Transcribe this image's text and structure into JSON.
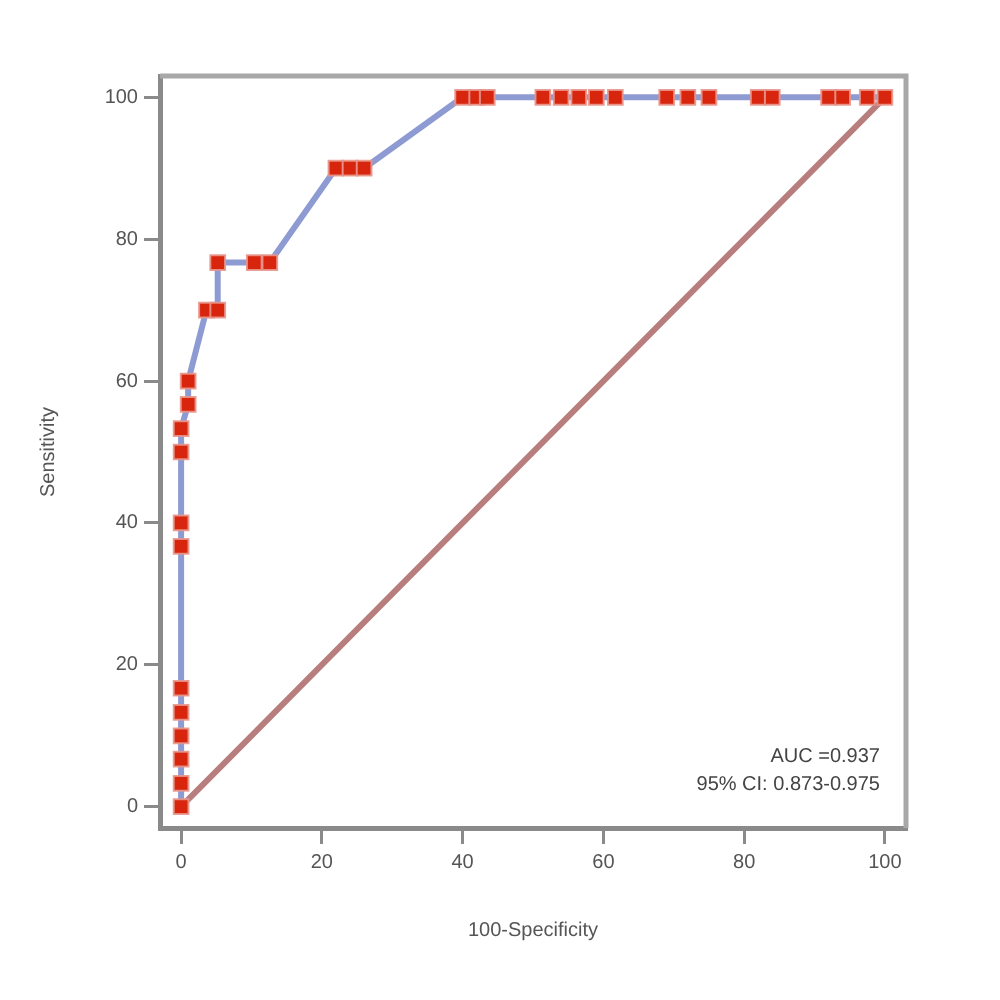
{
  "chart_data": {
    "type": "line",
    "xlabel": "100-Specificity",
    "ylabel": "Sensitivity",
    "xlim": [
      -3,
      103
    ],
    "ylim": [
      -3,
      103
    ],
    "xticks": [
      0,
      20,
      40,
      60,
      80,
      100
    ],
    "yticks": [
      0,
      20,
      40,
      60,
      80,
      100
    ],
    "grid": false,
    "legend": false,
    "marker": "square",
    "series": [
      {
        "type": "line",
        "color": "#b87d7d",
        "marker": "none",
        "x": [
          0,
          100
        ],
        "values": [
          0,
          100
        ]
      },
      {
        "type": "line",
        "color": "#8e9bd3",
        "marker": "none",
        "x": [
          0,
          0,
          0,
          0,
          0,
          0,
          0,
          0,
          0,
          0,
          1,
          1,
          3.6,
          5.2,
          5.2,
          10.4,
          12.6,
          22,
          24,
          26,
          40,
          42,
          43.5,
          51.4,
          54,
          56.5,
          59,
          61.7,
          69,
          72,
          75,
          82,
          84,
          92,
          94,
          97.5,
          100
        ],
        "values": [
          0,
          3.3,
          6.7,
          10,
          13.3,
          16.7,
          36.7,
          40,
          50,
          53.3,
          56.7,
          60,
          70,
          70,
          76.7,
          76.7,
          76.7,
          90,
          90,
          90,
          100,
          100,
          100,
          100,
          100,
          100,
          100,
          100,
          100,
          100,
          100,
          100,
          100,
          100,
          100,
          100,
          100
        ]
      },
      {
        "type": "scatter",
        "color": "#d8260e",
        "x": [
          0,
          0,
          0,
          0,
          0,
          0,
          0,
          0,
          0,
          0,
          1,
          1,
          3.6,
          5.2,
          5.2,
          10.4,
          12.6,
          22,
          24,
          26,
          40,
          42,
          43.5,
          51.4,
          54,
          56.5,
          59,
          61.7,
          69,
          72,
          75,
          82,
          84,
          92,
          94,
          97.5,
          100
        ],
        "values": [
          0,
          3.3,
          6.7,
          10,
          13.3,
          16.7,
          36.7,
          40,
          50,
          53.3,
          56.7,
          60,
          70,
          70,
          76.7,
          76.7,
          76.7,
          90,
          90,
          90,
          100,
          100,
          100,
          100,
          100,
          100,
          100,
          100,
          100,
          100,
          100,
          100,
          100,
          100,
          100,
          100,
          100
        ]
      }
    ],
    "annotations": [
      "AUC =0.937",
      "95% CI: 0.873-0.975"
    ]
  }
}
